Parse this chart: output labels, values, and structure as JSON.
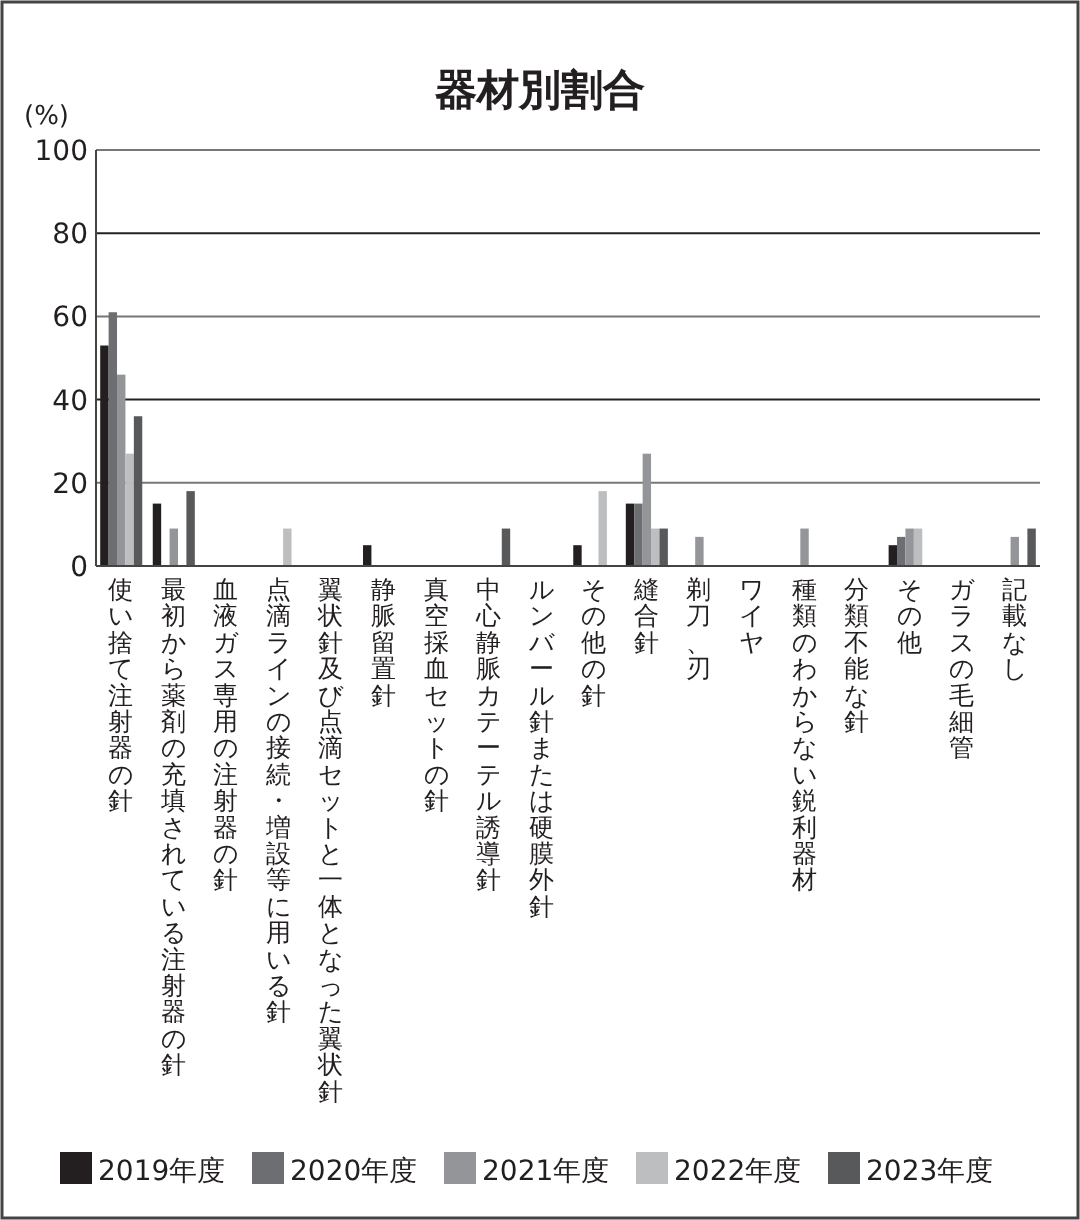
{
  "chart_data": {
    "type": "bar",
    "title": "器材別割合",
    "ylabel": "(%)",
    "categories": [
      "使い捨て注射器の針",
      "最初から薬剤の充填されている注射器の針",
      "血液ガス専用の注射器の針",
      "点滴ラインの接続・増設等に用いる針",
      "翼状針及び点滴セットと一体となった翼状針",
      "静脈留置針",
      "真空採血セットの針",
      "中心静脈カテーテル誘導針",
      "ルンバール針または硬膜外針",
      "その他の針",
      "縫合針",
      "剃刀、刃",
      "ワイヤ",
      "種類のわからない鋭利器材",
      "分類不能な針",
      "その他",
      "ガラスの毛細管",
      "記載なし"
    ],
    "series": [
      {
        "name": "2019年度",
        "color": "#231f20",
        "values": [
          53,
          15,
          0,
          0,
          0,
          5,
          0,
          0,
          0,
          5,
          15,
          0,
          0,
          0,
          0,
          5,
          0,
          0
        ]
      },
      {
        "name": "2020年度",
        "color": "#6d6e71",
        "values": [
          61,
          0,
          0,
          0,
          0,
          0,
          0,
          0,
          0,
          0,
          15,
          0,
          0,
          0,
          0,
          7,
          0,
          0
        ]
      },
      {
        "name": "2021年度",
        "color": "#939598",
        "values": [
          46,
          9,
          0,
          0,
          0,
          0,
          0,
          0,
          0,
          0,
          27,
          7,
          0,
          9,
          0,
          9,
          0,
          7
        ]
      },
      {
        "name": "2022年度",
        "color": "#bcbec0",
        "values": [
          27,
          0,
          0,
          9,
          0,
          0,
          0,
          0,
          0,
          18,
          9,
          0,
          0,
          0,
          0,
          9,
          0,
          0
        ]
      },
      {
        "name": "2023年度",
        "color": "#58595b",
        "values": [
          36,
          18,
          0,
          0,
          0,
          0,
          0,
          9,
          0,
          0,
          9,
          0,
          0,
          0,
          0,
          0,
          0,
          9
        ]
      }
    ],
    "ylim": [
      0,
      100
    ],
    "yticks": [
      0,
      20,
      40,
      60,
      80,
      100
    ],
    "grid": "y",
    "legend": "bottom"
  }
}
